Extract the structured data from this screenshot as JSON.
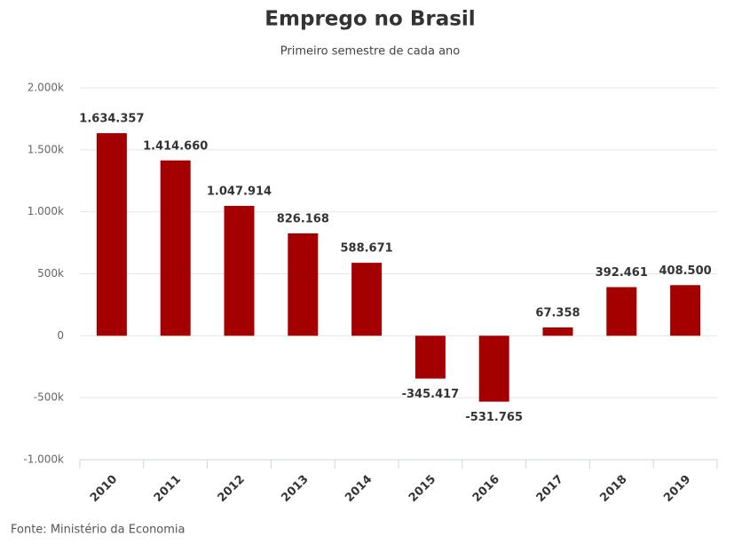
{
  "chart_data": {
    "type": "bar",
    "title": "Emprego no Brasil",
    "subtitle": "Primeiro semestre de cada ano",
    "source": "Fonte: Ministério da Economia",
    "categories": [
      "2010",
      "2011",
      "2012",
      "2013",
      "2014",
      "2015",
      "2016",
      "2017",
      "2018",
      "2019"
    ],
    "values": [
      1634357,
      1414660,
      1047914,
      826168,
      588671,
      -345417,
      -531765,
      67358,
      392461,
      408500
    ],
    "value_labels": [
      "1.634.357",
      "1.414.660",
      "1.047.914",
      "826.168",
      "588.671",
      "-345.417",
      "-531.765",
      "67.358",
      "392.461",
      "408.500"
    ],
    "color": "#a50000",
    "ylim": [
      -1000000,
      2000000
    ],
    "yticks": [
      {
        "value": -1000000,
        "label": "-1.000k"
      },
      {
        "value": -500000,
        "label": "-500k"
      },
      0,
      {
        "value": 500000,
        "label": "500k"
      },
      {
        "value": 1000000,
        "label": "1.000k"
      },
      {
        "value": 1500000,
        "label": "1.500k"
      },
      {
        "value": 2000000,
        "label": "2.000k"
      }
    ],
    "grid": true
  }
}
